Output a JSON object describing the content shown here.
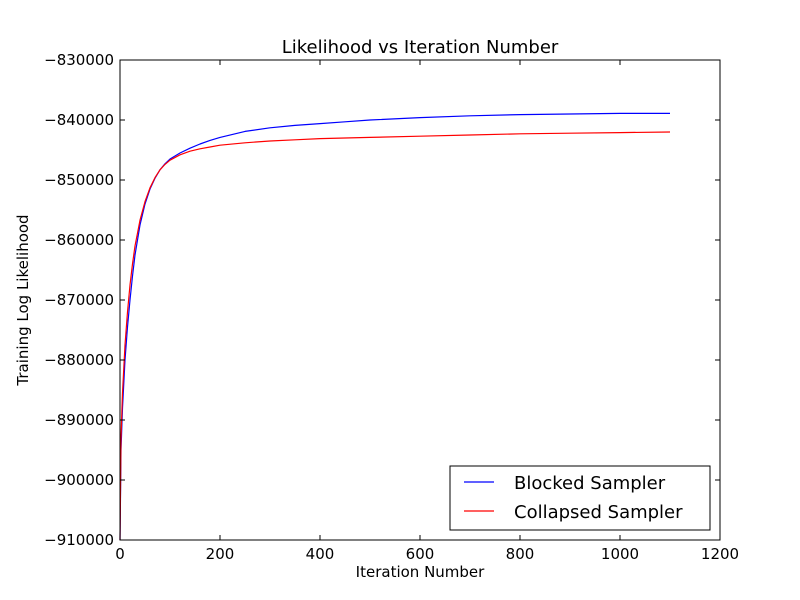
{
  "chart_data": {
    "type": "line",
    "title": "Likelihood vs Iteration Number",
    "xlabel": "Iteration Number",
    "ylabel": "Training Log Likelihood",
    "xlim": [
      0,
      1200
    ],
    "ylim": [
      -910000,
      -830000
    ],
    "x_ticks": [
      0,
      200,
      400,
      600,
      800,
      1000,
      1200
    ],
    "y_ticks": [
      -910000,
      -900000,
      -890000,
      -880000,
      -870000,
      -860000,
      -850000,
      -840000,
      -830000
    ],
    "x_tick_labels": [
      "0",
      "200",
      "400",
      "600",
      "800",
      "1000",
      "1200"
    ],
    "y_tick_labels": [
      "−910000",
      "−900000",
      "−890000",
      "−880000",
      "−870000",
      "−860000",
      "−850000",
      "−840000",
      "−830000"
    ],
    "grid": false,
    "legend_position": "lower-right",
    "series": [
      {
        "name": "Blocked Sampler",
        "color": "#0000ff",
        "x": [
          0,
          2,
          5,
          10,
          15,
          20,
          25,
          30,
          40,
          50,
          60,
          70,
          80,
          90,
          100,
          120,
          140,
          160,
          180,
          200,
          250,
          300,
          350,
          400,
          450,
          500,
          600,
          700,
          800,
          900,
          1000,
          1100
        ],
        "y": [
          -910000,
          -895000,
          -888000,
          -880000,
          -874500,
          -870000,
          -866000,
          -862500,
          -857500,
          -854000,
          -851500,
          -849700,
          -848300,
          -847300,
          -846500,
          -845500,
          -844700,
          -844000,
          -843400,
          -842900,
          -841900,
          -841300,
          -840900,
          -840600,
          -840300,
          -840000,
          -839600,
          -839300,
          -839100,
          -839000,
          -838900,
          -838900
        ]
      },
      {
        "name": "Collapsed Sampler",
        "color": "#ff0000",
        "x": [
          0,
          2,
          5,
          10,
          15,
          20,
          25,
          30,
          40,
          50,
          60,
          70,
          80,
          90,
          100,
          120,
          140,
          160,
          180,
          200,
          250,
          300,
          350,
          400,
          450,
          500,
          600,
          700,
          800,
          900,
          1000,
          1100
        ],
        "y": [
          -910000,
          -893000,
          -885500,
          -877500,
          -872000,
          -867500,
          -864000,
          -861000,
          -856700,
          -853600,
          -851300,
          -849600,
          -848300,
          -847400,
          -846700,
          -845800,
          -845200,
          -844800,
          -844500,
          -844200,
          -843800,
          -843500,
          -843300,
          -843100,
          -843000,
          -842900,
          -842700,
          -842500,
          -842300,
          -842200,
          -842100,
          -842000
        ]
      }
    ]
  }
}
